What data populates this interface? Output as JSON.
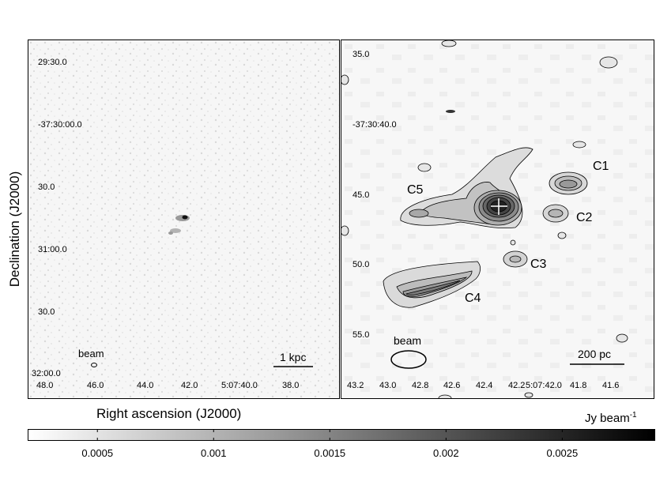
{
  "chart_data": [
    {
      "type": "heatmap",
      "panel": "left",
      "ylabel": "Declination (J2000)",
      "xlabel": "Right ascension (J2000)",
      "y_ticks": [
        "29:30.0",
        "-37:30:00.0",
        "30.0",
        "31:00.0",
        "30.0",
        "32:00.0"
      ],
      "x_ticks": [
        "48.0",
        "46.0",
        "44.0",
        "42.0",
        "5:07:40.0",
        "38.0"
      ],
      "beam_label": "beam",
      "scalebar_label": "1 kpc"
    },
    {
      "type": "heatmap",
      "panel": "right",
      "y_ticks": [
        "35.0",
        "-37:30:40.0",
        "45.0",
        "50.0",
        "55.0"
      ],
      "x_ticks": [
        "43.2",
        "43.0",
        "42.8",
        "42.6",
        "42.4",
        "42.2",
        "5:07:42.0",
        "41.8",
        "41.6"
      ],
      "components": [
        "C1",
        "C2",
        "C3",
        "C4",
        "C5"
      ],
      "beam_label": "beam",
      "scalebar_label": "200 pc"
    }
  ],
  "colorbar": {
    "title": "Jy beam",
    "title_sup": "-1",
    "range": [
      0.0002,
      0.0029
    ],
    "ticks": [
      "0.0005",
      "0.001",
      "0.0015",
      "0.002",
      "0.0025"
    ],
    "tick_values": [
      0.0005,
      0.001,
      0.0015,
      0.002,
      0.0025
    ],
    "colormap": [
      "#ffffff",
      "#000000"
    ]
  }
}
